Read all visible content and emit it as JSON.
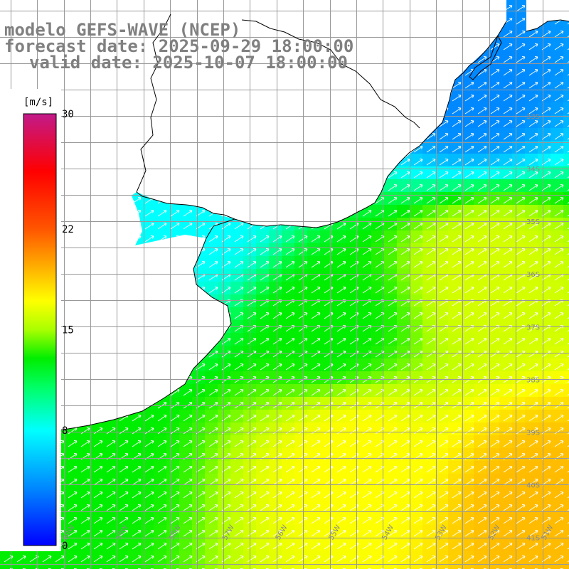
{
  "title": {
    "line1": "modelo GEFS-WAVE (NCEP)",
    "line2": "forecast date: 2025-09-29 18:00:00",
    "line3": "valid date: 2025-10-07 18:00:00"
  },
  "colorbar": {
    "unit": "[m/s]",
    "ticks": [
      "30",
      "22",
      "15",
      "8",
      "0"
    ],
    "tick_values": [
      30,
      22,
      15,
      8,
      0
    ],
    "range": [
      0,
      30
    ],
    "stops": [
      {
        "v": 0,
        "c": "#0000ff"
      },
      {
        "v": 4,
        "c": "#0088ff"
      },
      {
        "v": 8,
        "c": "#00ffff"
      },
      {
        "v": 11,
        "c": "#00ff66"
      },
      {
        "v": 13,
        "c": "#00ee00"
      },
      {
        "v": 15,
        "c": "#aaff00"
      },
      {
        "v": 17,
        "c": "#ffff00"
      },
      {
        "v": 20,
        "c": "#ff9900"
      },
      {
        "v": 22,
        "c": "#ff5500"
      },
      {
        "v": 26,
        "c": "#ff0000"
      },
      {
        "v": 30,
        "c": "#c21a8a"
      }
    ]
  },
  "grid": {
    "lon_labels": [
      "61W",
      "60W",
      "59W",
      "58W",
      "57W",
      "56W",
      "55W",
      "54W",
      "53W",
      "52W",
      "51W"
    ],
    "lat_labels": [
      "33S",
      "34S",
      "35S",
      "36S",
      "37S",
      "38S",
      "39S",
      "40S",
      "41S"
    ],
    "lon_range": [
      -61.2,
      -50.5
    ],
    "lat_range": [
      -30.8,
      -41.6
    ]
  },
  "colors": {
    "land": "#ffffff",
    "coast": "#000000",
    "grid": "#999999",
    "arrow": "#ffffff"
  },
  "chart_data": {
    "type": "heatmap",
    "variable": "wind speed",
    "unit": "m/s",
    "lon_range": [
      -61.2,
      -50.5
    ],
    "lat_range": [
      -30.8,
      -41.6
    ],
    "value_range": [
      0,
      30
    ],
    "wind_direction": "toward north-east",
    "samples": [
      {
        "lon": -57.5,
        "lat": -34.9,
        "value": 8
      },
      {
        "lon": -52.3,
        "lat": -32.5,
        "value": 4
      },
      {
        "lon": -60.0,
        "lat": -39.5,
        "value": 13
      },
      {
        "lon": -55.0,
        "lat": -37.0,
        "value": 13
      },
      {
        "lon": -52.0,
        "lat": -36.0,
        "value": 16
      },
      {
        "lon": -54.5,
        "lat": -39.5,
        "value": 17
      },
      {
        "lon": -51.0,
        "lat": -40.5,
        "value": 19
      }
    ]
  }
}
